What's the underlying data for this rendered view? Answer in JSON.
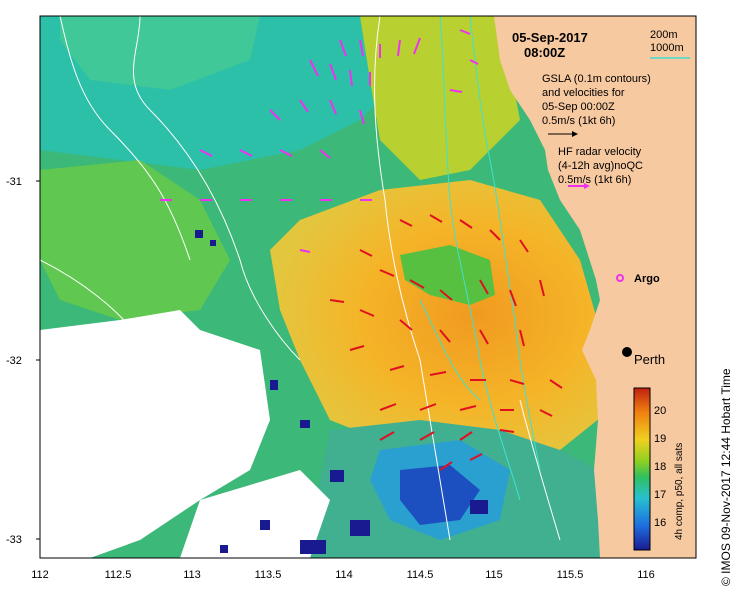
{
  "map": {
    "date": "05-Sep-2017",
    "time": "08:00Z",
    "legend": {
      "contour_200m": "200m",
      "contour_1000m": "1000m",
      "gsla_line1": "GSLA (0.1m contours)",
      "gsla_line2": "and velocities for",
      "gsla_line3": "05-Sep 00:00Z",
      "gsla_scale": "0.5m/s (1kt 6h)",
      "hf_line1": "HF radar velocity",
      "hf_line2": "(4-12h avg)noQC",
      "hf_scale": "0.5m/s (1kt 6h)"
    },
    "places": {
      "argo": "Argo",
      "perth": "Perth"
    },
    "axes": {
      "x_ticks": [
        "112",
        "112.5",
        "113",
        "113.5",
        "114",
        "114.5",
        "115",
        "115.5",
        "116"
      ],
      "y_ticks": [
        "-31",
        "-32",
        "-33"
      ]
    },
    "colorbar": {
      "label": "4h comp, p50, all sats",
      "ticks": [
        "20",
        "19",
        "18",
        "17",
        "16"
      ]
    },
    "credit": "© IMOS 09-Nov-2017 12:44 Hobart Time",
    "colors": {
      "land": "#f7c9a0",
      "hf_arrow": "#e01020",
      "gsla_arrow": "#f030f0",
      "contour_200m": "#ffffff",
      "contour_1000m": "#40e0d0"
    }
  }
}
